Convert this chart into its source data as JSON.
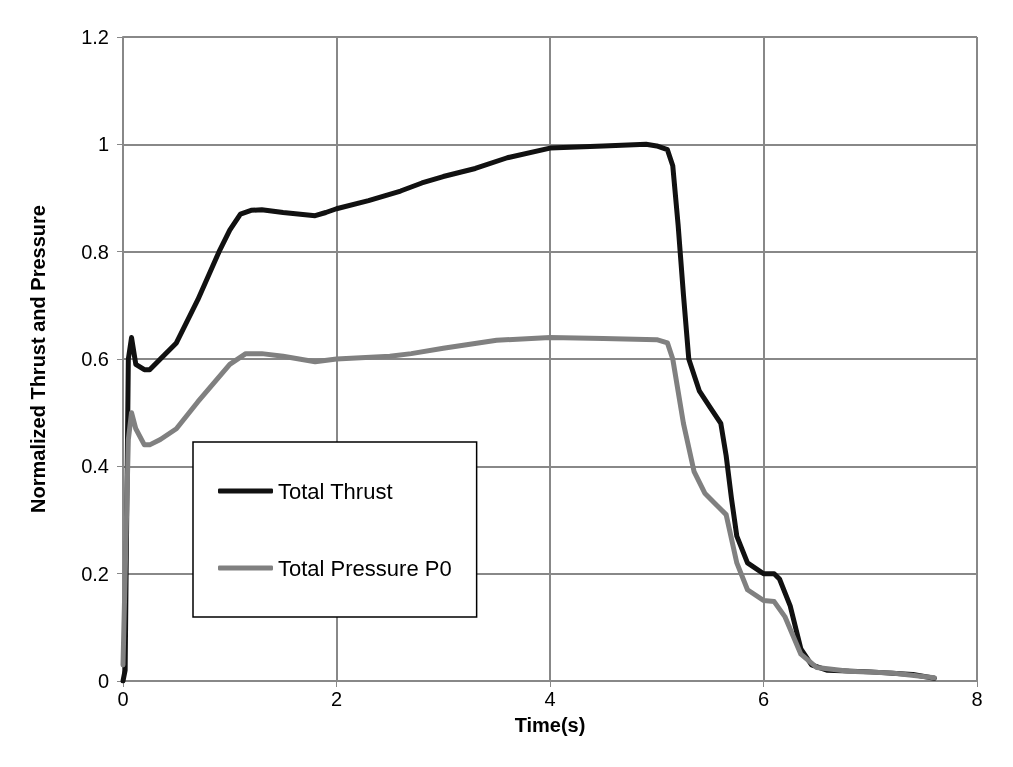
{
  "chart_data": {
    "type": "line",
    "xlabel": "Time(s)",
    "ylabel": "Normalized Thrust and Pressure",
    "xlim": [
      0,
      8
    ],
    "xticks": [
      0,
      2,
      4,
      6,
      8
    ],
    "ylim": [
      0,
      1.2
    ],
    "yticks": [
      0,
      0.2,
      0.4,
      0.6,
      0.8,
      1,
      1.2
    ],
    "grid": true,
    "legend": "bottom left",
    "marker": "none",
    "line_style": "solid",
    "series": [
      {
        "name": "Total Thrust",
        "color": "#111111",
        "x": [
          0,
          0.02,
          0.05,
          0.08,
          0.12,
          0.2,
          0.25,
          0.35,
          0.5,
          0.7,
          0.9,
          1.0,
          1.1,
          1.2,
          1.3,
          1.5,
          1.8,
          1.9,
          2.0,
          2.3,
          2.6,
          2.8,
          3.0,
          3.3,
          3.6,
          4.0,
          4.5,
          4.9,
          5.0,
          5.1,
          5.15,
          5.2,
          5.25,
          5.3,
          5.4,
          5.5,
          5.6,
          5.65,
          5.7,
          5.75,
          5.85,
          6.0,
          6.1,
          6.15,
          6.25,
          6.35,
          6.45,
          6.6,
          7.0,
          7.4,
          7.6
        ],
        "values": [
          0,
          0.02,
          0.6,
          0.64,
          0.59,
          0.58,
          0.58,
          0.6,
          0.63,
          0.71,
          0.8,
          0.84,
          0.87,
          0.877,
          0.878,
          0.873,
          0.867,
          0.873,
          0.88,
          0.895,
          0.913,
          0.928,
          0.94,
          0.955,
          0.975,
          0.993,
          0.997,
          1.0,
          0.997,
          0.99,
          0.96,
          0.85,
          0.72,
          0.6,
          0.54,
          0.51,
          0.48,
          0.42,
          0.34,
          0.27,
          0.22,
          0.2,
          0.2,
          0.19,
          0.14,
          0.06,
          0.03,
          0.02,
          0.017,
          0.012,
          0.005
        ]
      },
      {
        "name": "Total Pressure P0",
        "color": "#808080",
        "x": [
          0,
          0.05,
          0.08,
          0.12,
          0.2,
          0.25,
          0.35,
          0.5,
          0.7,
          1.0,
          1.15,
          1.3,
          1.5,
          1.8,
          2.0,
          2.5,
          2.7,
          3.0,
          3.5,
          4.0,
          4.5,
          5.0,
          5.1,
          5.15,
          5.25,
          5.35,
          5.45,
          5.55,
          5.65,
          5.75,
          5.85,
          6.0,
          6.1,
          6.2,
          6.35,
          6.5,
          6.8,
          7.2,
          7.6
        ],
        "values": [
          0.03,
          0.45,
          0.5,
          0.47,
          0.44,
          0.44,
          0.45,
          0.47,
          0.52,
          0.59,
          0.61,
          0.61,
          0.605,
          0.595,
          0.6,
          0.605,
          0.61,
          0.62,
          0.635,
          0.64,
          0.638,
          0.636,
          0.63,
          0.6,
          0.48,
          0.39,
          0.35,
          0.33,
          0.31,
          0.22,
          0.17,
          0.15,
          0.148,
          0.12,
          0.05,
          0.025,
          0.018,
          0.015,
          0.006
        ]
      }
    ]
  }
}
